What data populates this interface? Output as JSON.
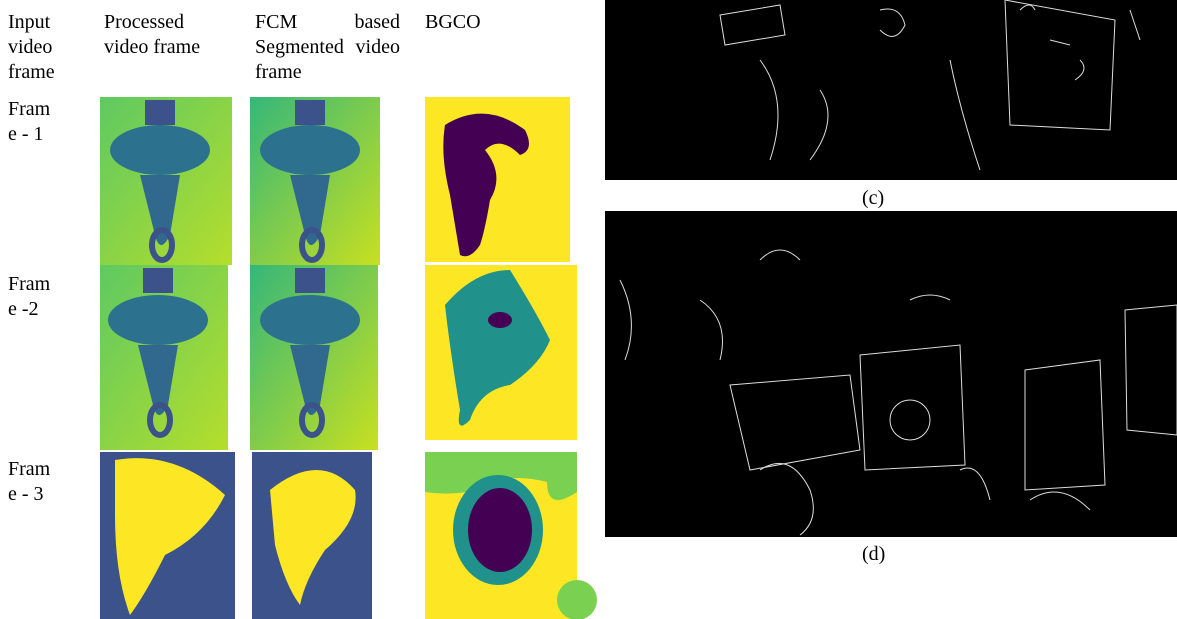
{
  "figure": {
    "columns": [
      "Input video frame",
      "Processed video frame",
      "FCM based Segmented video frame",
      "BGCO"
    ],
    "rows": [
      "Frame - 1",
      "Frame -2",
      "Frame - 3"
    ],
    "captions": [
      "(c)",
      "(d)"
    ]
  }
}
